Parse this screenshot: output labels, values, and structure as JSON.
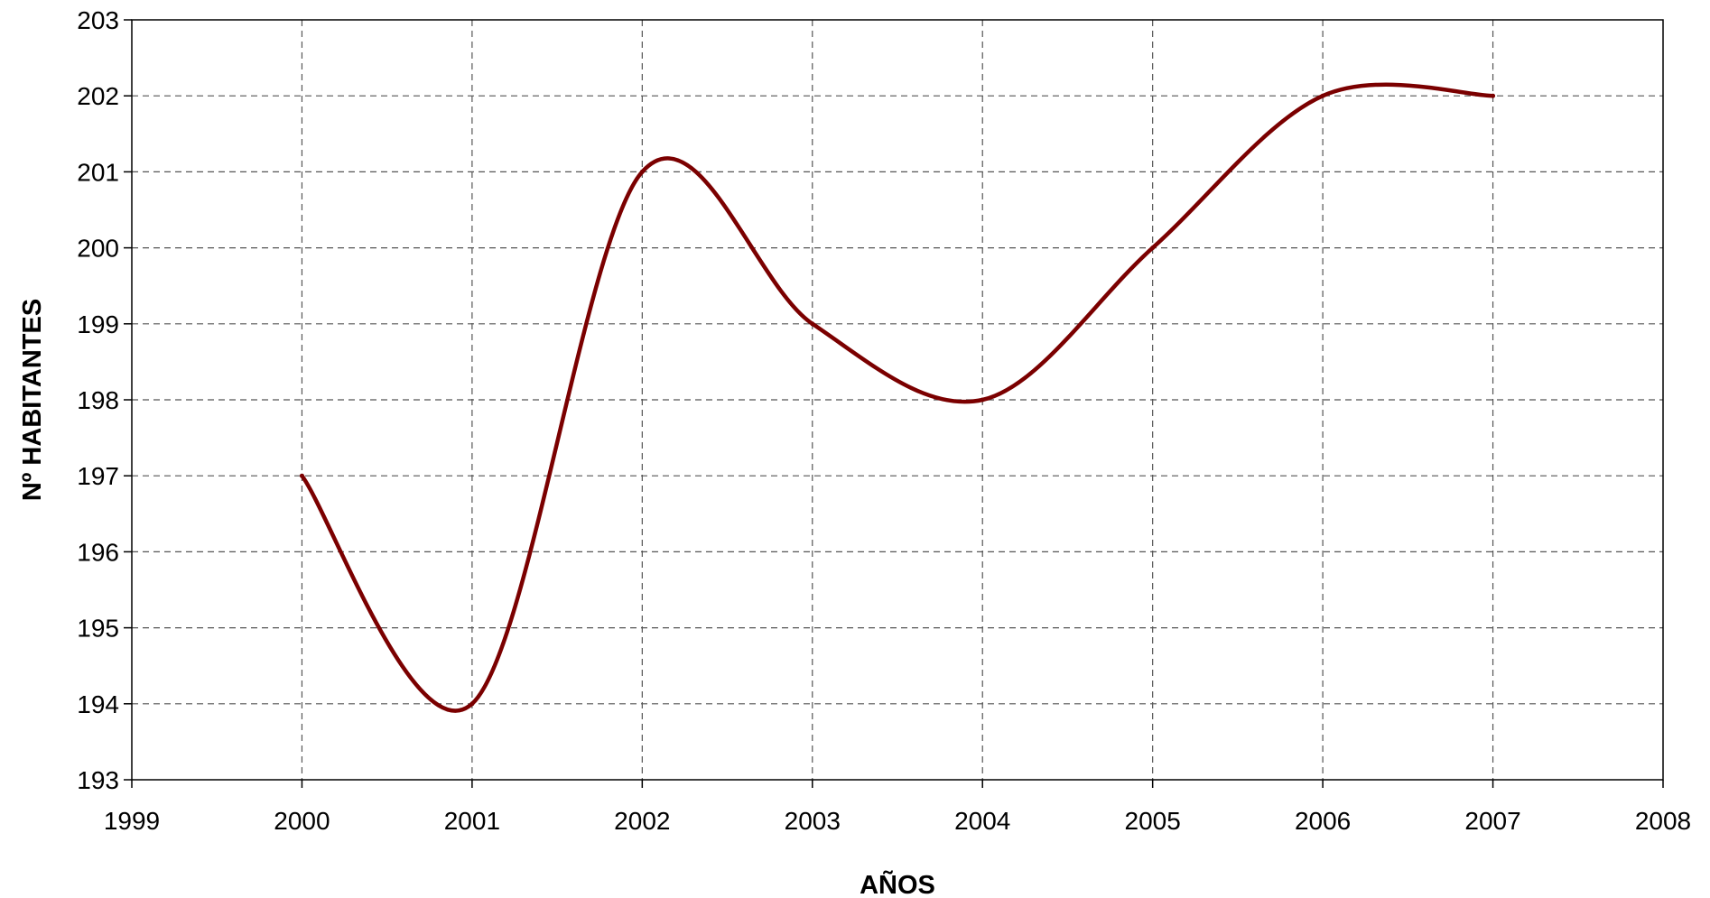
{
  "chart_data": {
    "type": "line",
    "title": "",
    "xlabel": "AÑOS",
    "ylabel": "Nº HABITANTES",
    "xlim": [
      1999,
      2008
    ],
    "ylim": [
      193,
      203
    ],
    "x_ticks": [
      1999,
      2000,
      2001,
      2002,
      2003,
      2004,
      2005,
      2006,
      2007,
      2008
    ],
    "y_ticks": [
      193,
      194,
      195,
      196,
      197,
      198,
      199,
      200,
      201,
      202,
      203
    ],
    "grid": true,
    "legend": "none",
    "smooth": true,
    "series": [
      {
        "color": "#7b0000",
        "x": [
          2000,
          2001,
          2002,
          2003,
          2004,
          2005,
          2006,
          2007
        ],
        "y": [
          197,
          194,
          201,
          199,
          198,
          200,
          202,
          202
        ]
      }
    ]
  }
}
